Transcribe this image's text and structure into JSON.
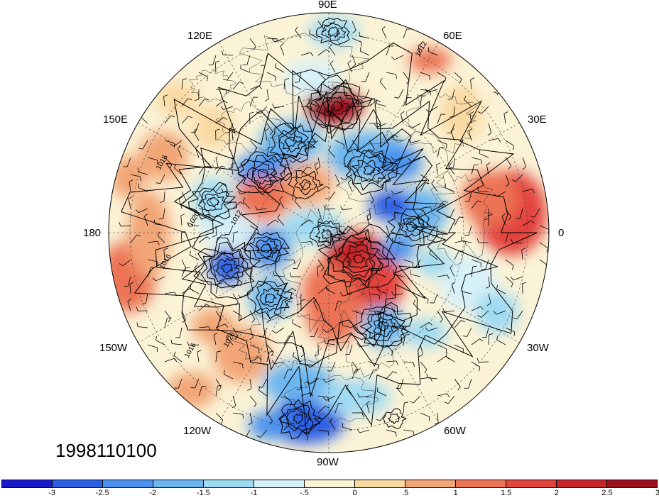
{
  "date_stamp": "1998110100",
  "longitude_labels": {
    "e90": "90E",
    "e120": "120E",
    "e60": "60E",
    "e150": "150E",
    "e30": "30E",
    "w180": "180",
    "zero": "0",
    "w150": "150W",
    "w30": "30W",
    "w120": "120W",
    "w60": "60W",
    "w90": "90W"
  },
  "colorbar": {
    "colors": [
      "#1a1acd",
      "#2a5fe6",
      "#4a92ee",
      "#6cb6f0",
      "#9fdaf3",
      "#d7f1f8",
      "#fbf3d6",
      "#f9d9a2",
      "#f2a576",
      "#ec7355",
      "#e3433c",
      "#c72428",
      "#9c0f1c"
    ],
    "ticks": [
      "-3",
      "-2.5",
      "-2",
      "-1.5",
      "-1",
      "-.5",
      "0",
      ".5",
      "1",
      "1.5",
      "2",
      "2.5",
      "3"
    ]
  },
  "contour_labels": [
    "1012",
    "1016",
    "1020",
    "1012",
    "1016",
    "1020",
    "1016",
    "1012"
  ]
}
